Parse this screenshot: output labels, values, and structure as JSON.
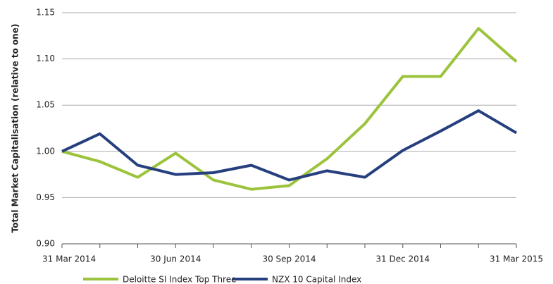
{
  "chart_data": {
    "type": "line",
    "y_axis_label": "Total Market Capitalisation (relative to one)",
    "categories": [
      "31 Mar 2014",
      null,
      null,
      "30 Jun 2014",
      null,
      null,
      "30 Sep 2014",
      null,
      null,
      "31 Dec 2014",
      null,
      null,
      "31 Mar 2015"
    ],
    "series": [
      {
        "name": "Deloitte SI Index Top Three",
        "color": "#9bc33c",
        "values": [
          1.0,
          0.989,
          0.972,
          0.998,
          0.969,
          0.959,
          0.963,
          0.992,
          1.03,
          1.081,
          1.081,
          1.133,
          1.097
        ]
      },
      {
        "name": "NZX 10 Capital Index",
        "color": "#253f7f",
        "values": [
          1.0,
          1.019,
          0.985,
          0.975,
          0.977,
          0.985,
          0.969,
          0.979,
          0.972,
          1.001,
          1.022,
          1.044,
          1.02
        ]
      }
    ],
    "ylim": [
      0.9,
      1.15
    ],
    "yticks": [
      {
        "value": 0.9,
        "label": "0.90"
      },
      0.95,
      {
        "value": 1.0,
        "label": "1.00"
      },
      1.05,
      {
        "value": 1.1,
        "label": "1.10"
      },
      1.15
    ],
    "grid": true,
    "legend": "bottom"
  }
}
